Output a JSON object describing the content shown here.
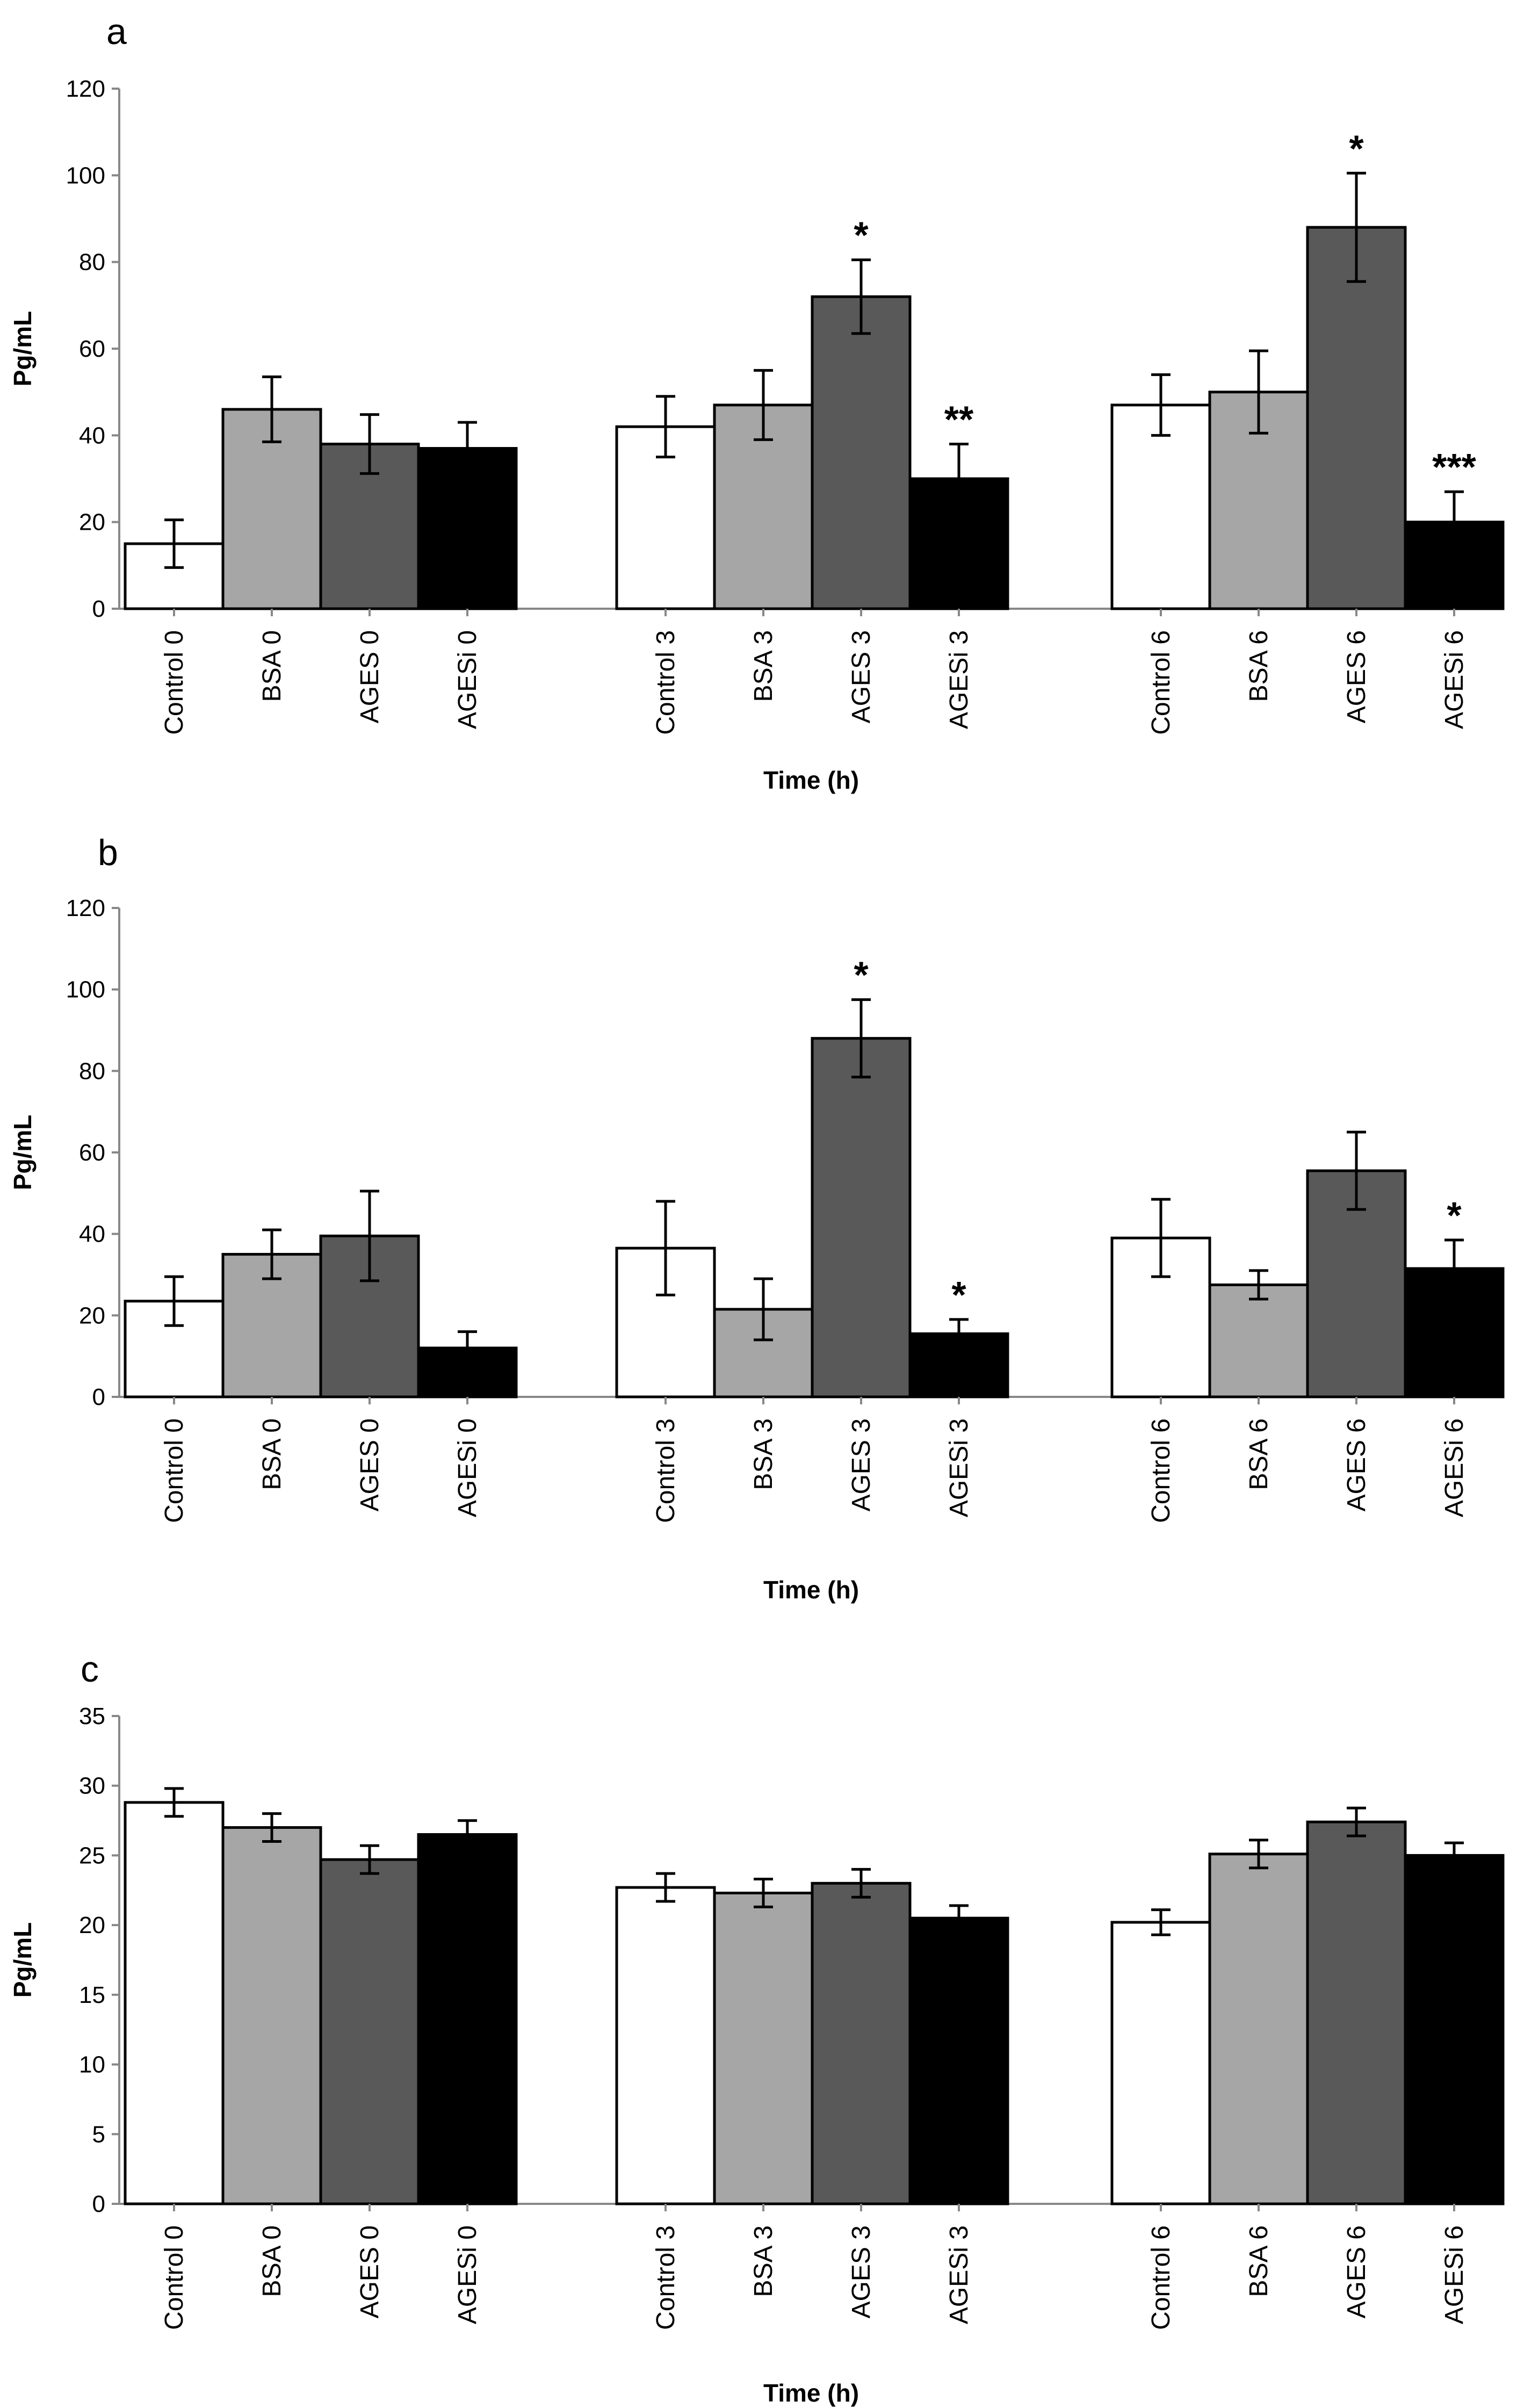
{
  "series_colors": {
    "Control": "#ffffff",
    "BSA": "#a6a6a6",
    "AGES": "#595959",
    "AGESi": "#000000"
  },
  "chart_data": [
    {
      "panel_label": "a",
      "type": "bar",
      "ylabel": "Pg/mL",
      "xlabel": "Time (h)",
      "ylim": [
        0,
        120
      ],
      "yticks": [
        0,
        20,
        40,
        60,
        80,
        100,
        120
      ],
      "grid": false,
      "bars": [
        {
          "label": "Control 0",
          "series": "Control",
          "value": 15,
          "err": 5.5,
          "annotation": ""
        },
        {
          "label": "BSA 0",
          "series": "BSA",
          "value": 46,
          "err": 7.5,
          "annotation": ""
        },
        {
          "label": "AGES 0",
          "series": "AGES",
          "value": 38,
          "err": 6.8,
          "annotation": ""
        },
        {
          "label": "AGESi 0",
          "series": "AGESi",
          "value": 37,
          "err": 6,
          "annotation": ""
        },
        {
          "label": "Control 3",
          "series": "Control",
          "value": 42,
          "err": 7,
          "annotation": ""
        },
        {
          "label": "BSA 3",
          "series": "BSA",
          "value": 47,
          "err": 8,
          "annotation": ""
        },
        {
          "label": "AGES 3",
          "series": "AGES",
          "value": 72,
          "err": 8.5,
          "annotation": "*"
        },
        {
          "label": "AGESi 3",
          "series": "AGESi",
          "value": 30,
          "err": 8,
          "annotation": "**"
        },
        {
          "label": "Control 6",
          "series": "Control",
          "value": 47,
          "err": 7,
          "annotation": ""
        },
        {
          "label": "BSA 6",
          "series": "BSA",
          "value": 50,
          "err": 9.5,
          "annotation": ""
        },
        {
          "label": "AGES 6",
          "series": "AGES",
          "value": 88,
          "err": 12.5,
          "annotation": "*"
        },
        {
          "label": "AGESi 6",
          "series": "AGESi",
          "value": 20,
          "err": 7,
          "annotation": "***"
        }
      ]
    },
    {
      "panel_label": "b",
      "type": "bar",
      "ylabel": "Pg/mL",
      "xlabel": "Time (h)",
      "ylim": [
        0,
        120
      ],
      "yticks": [
        0,
        20,
        40,
        60,
        80,
        100,
        120
      ],
      "grid": false,
      "bars": [
        {
          "label": "Control 0",
          "series": "Control",
          "value": 23.5,
          "err": 6,
          "annotation": ""
        },
        {
          "label": "BSA 0",
          "series": "BSA",
          "value": 35,
          "err": 6,
          "annotation": ""
        },
        {
          "label": "AGES 0",
          "series": "AGES",
          "value": 39.5,
          "err": 11,
          "annotation": ""
        },
        {
          "label": "AGESi 0",
          "series": "AGESi",
          "value": 12,
          "err": 4,
          "annotation": ""
        },
        {
          "label": "Control 3",
          "series": "Control",
          "value": 36.5,
          "err": 11.5,
          "annotation": ""
        },
        {
          "label": "BSA 3",
          "series": "BSA",
          "value": 21.5,
          "err": 7.5,
          "annotation": ""
        },
        {
          "label": "AGES 3",
          "series": "AGES",
          "value": 88,
          "err": 9.5,
          "annotation": "*"
        },
        {
          "label": "AGESi 3",
          "series": "AGESi",
          "value": 15.5,
          "err": 3.5,
          "annotation": "*"
        },
        {
          "label": "Control 6",
          "series": "Control",
          "value": 39,
          "err": 9.5,
          "annotation": ""
        },
        {
          "label": "BSA 6",
          "series": "BSA",
          "value": 27.5,
          "err": 3.5,
          "annotation": ""
        },
        {
          "label": "AGES 6",
          "series": "AGES",
          "value": 55.5,
          "err": 9.5,
          "annotation": ""
        },
        {
          "label": "AGESi 6",
          "series": "AGESi",
          "value": 31.5,
          "err": 7,
          "annotation": "*"
        }
      ]
    },
    {
      "panel_label": "c",
      "type": "bar",
      "ylabel": "Pg/mL",
      "xlabel": "Time (h)",
      "ylim": [
        0,
        35
      ],
      "yticks": [
        0,
        5,
        10,
        15,
        20,
        25,
        30,
        35
      ],
      "grid": false,
      "bars": [
        {
          "label": "Control 0",
          "series": "Control",
          "value": 28.8,
          "err": 1,
          "annotation": ""
        },
        {
          "label": "BSA 0",
          "series": "BSA",
          "value": 27,
          "err": 1,
          "annotation": ""
        },
        {
          "label": "AGES 0",
          "series": "AGES",
          "value": 24.7,
          "err": 1,
          "annotation": ""
        },
        {
          "label": "AGESi 0",
          "series": "AGESi",
          "value": 26.5,
          "err": 1,
          "annotation": ""
        },
        {
          "label": "Control 3",
          "series": "Control",
          "value": 22.7,
          "err": 1,
          "annotation": ""
        },
        {
          "label": "BSA 3",
          "series": "BSA",
          "value": 22.3,
          "err": 1,
          "annotation": ""
        },
        {
          "label": "AGES 3",
          "series": "AGES",
          "value": 23,
          "err": 1,
          "annotation": ""
        },
        {
          "label": "AGESi 3",
          "series": "AGESi",
          "value": 20.5,
          "err": 0.9,
          "annotation": ""
        },
        {
          "label": "Control 6",
          "series": "Control",
          "value": 20.2,
          "err": 0.9,
          "annotation": ""
        },
        {
          "label": "BSA 6",
          "series": "BSA",
          "value": 25.1,
          "err": 1,
          "annotation": ""
        },
        {
          "label": "AGES 6",
          "series": "AGES",
          "value": 27.4,
          "err": 1,
          "annotation": ""
        },
        {
          "label": "AGESi 6",
          "series": "AGESi",
          "value": 25,
          "err": 0.9,
          "annotation": ""
        }
      ]
    }
  ]
}
